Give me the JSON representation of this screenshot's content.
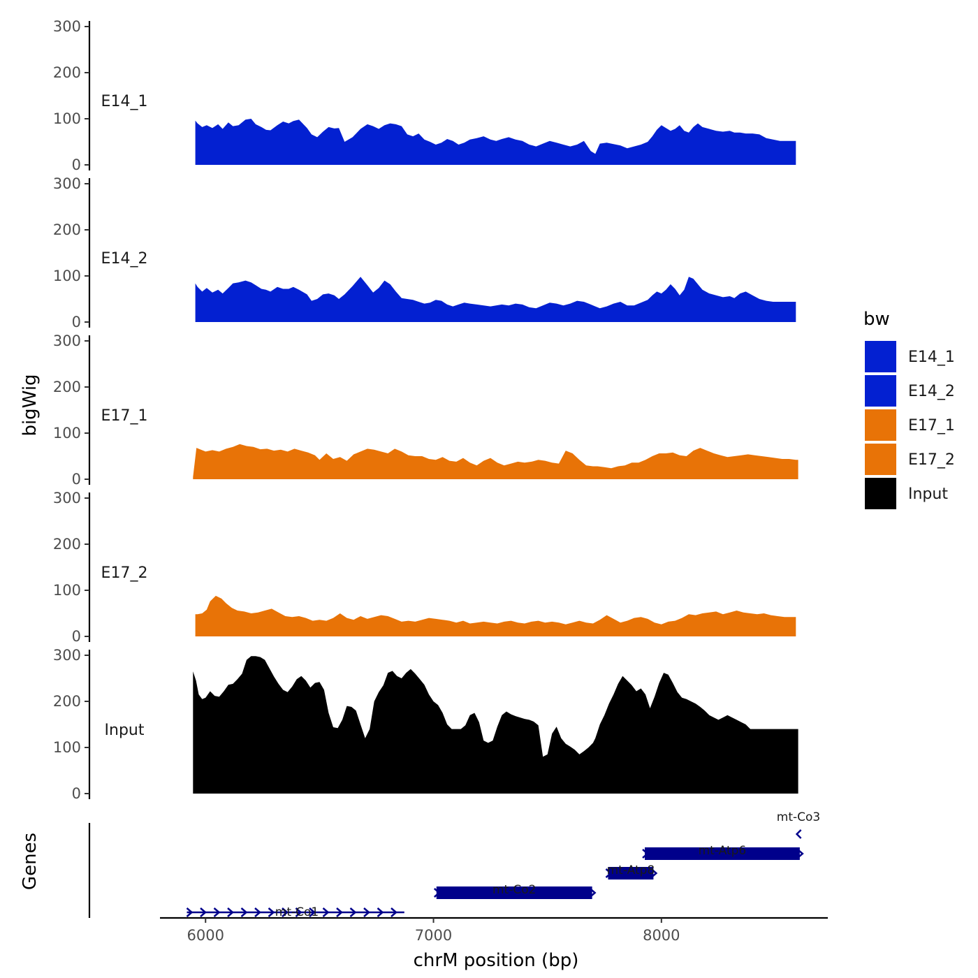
{
  "chart_data": {
    "type": "area",
    "xlabel": "chrM position (bp)",
    "ylabel": "bigWig",
    "genes_axis_label": "Genes",
    "xlim": [
      5800,
      8730
    ],
    "x_ticks": [
      6000,
      7000,
      8000
    ],
    "x_tick_labels": [
      "6000",
      "7000",
      "8000"
    ],
    "ylim": [
      0,
      300
    ],
    "y_ticks": [
      0,
      100,
      200,
      300
    ],
    "y_tick_labels": [
      "0",
      "100",
      "200",
      "300"
    ],
    "legend": {
      "title": "bw",
      "position": "right",
      "entries": [
        {
          "label": "E14_1",
          "color": "#0320d1"
        },
        {
          "label": "E14_2",
          "color": "#0320d1"
        },
        {
          "label": "E17_1",
          "color": "#e87307"
        },
        {
          "label": "E17_2",
          "color": "#e87307"
        },
        {
          "label": "Input",
          "color": "#000000"
        }
      ]
    },
    "series": [
      {
        "name": "E14_1",
        "color": "#0320d1",
        "x": [
          5955,
          5965,
          5985,
          6005,
          6030,
          6055,
          6075,
          6100,
          6120,
          6145,
          6175,
          6200,
          6220,
          6245,
          6265,
          6285,
          6315,
          6340,
          6365,
          6385,
          6410,
          6445,
          6465,
          6490,
          6515,
          6540,
          6565,
          6585,
          6610,
          6645,
          6680,
          6710,
          6735,
          6760,
          6785,
          6810,
          6835,
          6860,
          6885,
          6910,
          6935,
          6960,
          6985,
          7010,
          7035,
          7060,
          7085,
          7110,
          7135,
          7160,
          7190,
          7220,
          7250,
          7275,
          7300,
          7330,
          7360,
          7390,
          7420,
          7450,
          7480,
          7510,
          7540,
          7570,
          7600,
          7630,
          7660,
          7690,
          7710,
          7730,
          7760,
          7790,
          7820,
          7850,
          7880,
          7910,
          7940,
          7960,
          7980,
          8000,
          8020,
          8040,
          8060,
          8080,
          8100,
          8120,
          8140,
          8160,
          8180,
          8210,
          8240,
          8270,
          8300,
          8320,
          8345,
          8370,
          8400,
          8430,
          8460,
          8490,
          8520,
          8550,
          8580,
          8590
        ],
        "y": [
          96,
          90,
          82,
          86,
          80,
          88,
          78,
          92,
          84,
          86,
          98,
          100,
          88,
          82,
          76,
          75,
          86,
          94,
          90,
          95,
          98,
          80,
          66,
          60,
          72,
          82,
          79,
          80,
          50,
          60,
          78,
          88,
          84,
          78,
          86,
          90,
          88,
          84,
          66,
          62,
          68,
          55,
          50,
          44,
          48,
          56,
          52,
          44,
          48,
          55,
          58,
          62,
          55,
          52,
          56,
          60,
          55,
          52,
          44,
          40,
          46,
          52,
          48,
          44,
          40,
          44,
          52,
          30,
          24,
          46,
          48,
          45,
          42,
          36,
          40,
          44,
          50,
          62,
          76,
          86,
          80,
          74,
          78,
          86,
          74,
          70,
          82,
          90,
          82,
          78,
          74,
          72,
          74,
          70,
          70,
          68,
          68,
          66,
          58,
          55,
          52,
          52,
          52,
          52
        ]
      },
      {
        "name": "E14_2",
        "color": "#0320d1",
        "x": [
          5955,
          5965,
          5985,
          6005,
          6030,
          6055,
          6075,
          6100,
          6120,
          6145,
          6175,
          6200,
          6220,
          6245,
          6265,
          6285,
          6315,
          6340,
          6365,
          6385,
          6410,
          6445,
          6465,
          6490,
          6515,
          6540,
          6565,
          6585,
          6610,
          6645,
          6680,
          6710,
          6735,
          6760,
          6785,
          6810,
          6835,
          6860,
          6885,
          6910,
          6935,
          6960,
          6985,
          7010,
          7035,
          7060,
          7085,
          7110,
          7135,
          7160,
          7190,
          7220,
          7250,
          7275,
          7300,
          7330,
          7360,
          7390,
          7420,
          7450,
          7480,
          7510,
          7540,
          7570,
          7600,
          7630,
          7660,
          7690,
          7710,
          7730,
          7760,
          7790,
          7820,
          7850,
          7880,
          7910,
          7940,
          7960,
          7980,
          8000,
          8020,
          8040,
          8060,
          8080,
          8100,
          8120,
          8140,
          8160,
          8180,
          8210,
          8240,
          8270,
          8300,
          8320,
          8345,
          8370,
          8400,
          8430,
          8460,
          8490,
          8520,
          8550,
          8580,
          8590
        ],
        "y": [
          84,
          76,
          66,
          74,
          64,
          70,
          62,
          74,
          84,
          86,
          90,
          86,
          80,
          72,
          70,
          66,
          76,
          72,
          72,
          76,
          70,
          60,
          46,
          50,
          60,
          62,
          58,
          50,
          60,
          78,
          98,
          80,
          64,
          74,
          90,
          82,
          66,
          52,
          50,
          48,
          44,
          40,
          42,
          48,
          46,
          38,
          34,
          38,
          42,
          40,
          38,
          36,
          34,
          36,
          38,
          36,
          40,
          38,
          32,
          30,
          36,
          42,
          40,
          36,
          40,
          46,
          44,
          38,
          34,
          30,
          34,
          40,
          44,
          36,
          36,
          42,
          48,
          58,
          66,
          62,
          70,
          82,
          72,
          58,
          70,
          98,
          94,
          82,
          70,
          62,
          58,
          54,
          56,
          52,
          62,
          66,
          58,
          50,
          46,
          44,
          44,
          44,
          44,
          44
        ]
      },
      {
        "name": "E17_1",
        "color": "#e87307",
        "x": [
          5945,
          5960,
          5980,
          6000,
          6030,
          6060,
          6090,
          6120,
          6150,
          6180,
          6210,
          6240,
          6270,
          6300,
          6330,
          6360,
          6390,
          6420,
          6450,
          6480,
          6500,
          6530,
          6560,
          6590,
          6620,
          6650,
          6680,
          6710,
          6740,
          6770,
          6800,
          6830,
          6860,
          6890,
          6920,
          6950,
          6980,
          7010,
          7040,
          7070,
          7100,
          7130,
          7160,
          7190,
          7220,
          7250,
          7280,
          7310,
          7340,
          7370,
          7400,
          7430,
          7460,
          7490,
          7520,
          7550,
          7580,
          7610,
          7640,
          7670,
          7700,
          7720,
          7750,
          7780,
          7810,
          7840,
          7870,
          7900,
          7930,
          7960,
          7990,
          8020,
          8050,
          8080,
          8110,
          8140,
          8170,
          8200,
          8230,
          8260,
          8290,
          8320,
          8350,
          8380,
          8410,
          8440,
          8470,
          8500,
          8530,
          8560,
          8590,
          8600
        ],
        "y": [
          5,
          68,
          64,
          60,
          63,
          60,
          66,
          70,
          76,
          72,
          70,
          65,
          66,
          62,
          64,
          60,
          66,
          62,
          58,
          52,
          42,
          56,
          44,
          48,
          40,
          54,
          60,
          66,
          64,
          60,
          56,
          66,
          60,
          52,
          50,
          50,
          44,
          42,
          48,
          40,
          38,
          46,
          36,
          30,
          40,
          46,
          36,
          30,
          34,
          38,
          36,
          38,
          42,
          40,
          36,
          34,
          62,
          56,
          42,
          30,
          28,
          28,
          26,
          24,
          28,
          30,
          36,
          36,
          42,
          50,
          56,
          56,
          58,
          52,
          50,
          62,
          68,
          62,
          56,
          52,
          48,
          50,
          52,
          54,
          52,
          50,
          48,
          46,
          44,
          44,
          42,
          42
        ]
      },
      {
        "name": "E17_2",
        "color": "#e87307",
        "x": [
          5955,
          5965,
          5985,
          6005,
          6020,
          6045,
          6070,
          6090,
          6115,
          6140,
          6170,
          6200,
          6230,
          6260,
          6290,
          6320,
          6350,
          6380,
          6410,
          6440,
          6470,
          6500,
          6530,
          6560,
          6590,
          6620,
          6650,
          6680,
          6710,
          6740,
          6770,
          6800,
          6830,
          6860,
          6890,
          6920,
          6950,
          6980,
          7010,
          7040,
          7070,
          7100,
          7130,
          7160,
          7190,
          7220,
          7250,
          7280,
          7310,
          7340,
          7370,
          7400,
          7430,
          7460,
          7490,
          7520,
          7550,
          7580,
          7610,
          7640,
          7670,
          7700,
          7730,
          7760,
          7790,
          7820,
          7850,
          7880,
          7910,
          7940,
          7970,
          8000,
          8030,
          8060,
          8090,
          8120,
          8150,
          8180,
          8210,
          8240,
          8270,
          8300,
          8330,
          8360,
          8390,
          8420,
          8450,
          8480,
          8510,
          8540,
          8570,
          8590
        ],
        "y": [
          48,
          48,
          50,
          58,
          76,
          88,
          82,
          72,
          62,
          56,
          54,
          50,
          52,
          56,
          60,
          52,
          44,
          42,
          44,
          40,
          34,
          36,
          34,
          40,
          50,
          40,
          36,
          44,
          38,
          42,
          46,
          44,
          38,
          32,
          34,
          32,
          36,
          40,
          38,
          36,
          34,
          30,
          34,
          28,
          30,
          32,
          30,
          28,
          32,
          34,
          30,
          28,
          32,
          34,
          30,
          32,
          30,
          26,
          30,
          34,
          30,
          28,
          36,
          46,
          38,
          30,
          34,
          40,
          42,
          38,
          30,
          26,
          32,
          34,
          40,
          48,
          46,
          50,
          52,
          54,
          48,
          52,
          56,
          52,
          50,
          48,
          50,
          46,
          44,
          42,
          42,
          42
        ]
      },
      {
        "name": "Input",
        "color": "#000000",
        "x": [
          5945,
          5958,
          5970,
          5985,
          6000,
          6020,
          6040,
          6060,
          6080,
          6100,
          6120,
          6140,
          6160,
          6180,
          6200,
          6220,
          6240,
          6260,
          6280,
          6300,
          6320,
          6340,
          6360,
          6380,
          6400,
          6420,
          6440,
          6460,
          6480,
          6500,
          6520,
          6540,
          6560,
          6580,
          6600,
          6620,
          6640,
          6660,
          6680,
          6700,
          6720,
          6740,
          6760,
          6780,
          6800,
          6820,
          6840,
          6860,
          6880,
          6900,
          6920,
          6940,
          6960,
          6980,
          7000,
          7020,
          7040,
          7060,
          7080,
          7100,
          7120,
          7140,
          7160,
          7180,
          7200,
          7220,
          7240,
          7260,
          7280,
          7300,
          7320,
          7340,
          7360,
          7380,
          7400,
          7420,
          7440,
          7460,
          7480,
          7500,
          7520,
          7540,
          7560,
          7580,
          7600,
          7620,
          7640,
          7660,
          7680,
          7700,
          7710,
          7720,
          7730,
          7750,
          7770,
          7790,
          7810,
          7830,
          7850,
          7870,
          7890,
          7910,
          7930,
          7950,
          7970,
          7990,
          8010,
          8030,
          8050,
          8070,
          8090,
          8110,
          8130,
          8150,
          8170,
          8190,
          8210,
          8230,
          8250,
          8270,
          8290,
          8310,
          8330,
          8350,
          8370,
          8390,
          8410,
          8430,
          8450,
          8470,
          8490,
          8510,
          8530,
          8550,
          8570,
          8590,
          8600
        ],
        "y": [
          265,
          245,
          215,
          205,
          208,
          222,
          212,
          210,
          222,
          236,
          238,
          248,
          260,
          290,
          298,
          298,
          296,
          290,
          272,
          254,
          238,
          225,
          220,
          232,
          248,
          255,
          245,
          230,
          240,
          242,
          225,
          175,
          144,
          142,
          160,
          190,
          188,
          180,
          150,
          120,
          140,
          200,
          220,
          235,
          262,
          266,
          255,
          250,
          262,
          270,
          260,
          248,
          236,
          215,
          200,
          192,
          175,
          150,
          140,
          140,
          140,
          148,
          170,
          175,
          155,
          115,
          110,
          115,
          145,
          170,
          178,
          172,
          168,
          165,
          162,
          160,
          156,
          148,
          80,
          85,
          130,
          145,
          120,
          108,
          102,
          95,
          85,
          92,
          100,
          110,
          120,
          135,
          150,
          170,
          195,
          215,
          238,
          255,
          245,
          235,
          222,
          228,
          215,
          185,
          210,
          240,
          262,
          258,
          240,
          220,
          208,
          205,
          200,
          195,
          188,
          180,
          170,
          165,
          160,
          165,
          170,
          165,
          160,
          155,
          150,
          140,
          140,
          140,
          140,
          140,
          140,
          140,
          140,
          140,
          140,
          140,
          140
        ],
        "note": "values approximate, read from plot"
      }
    ],
    "genes": [
      {
        "name": "mt-Co1",
        "start": 5918,
        "end": 6872,
        "strand": "+",
        "row": 0,
        "style": "arrows"
      },
      {
        "name": "mt-Co2",
        "start": 7013,
        "end": 7696,
        "strand": "+",
        "row": 1,
        "style": "box"
      },
      {
        "name": "mt-Atp8",
        "start": 7766,
        "end": 7965,
        "strand": "+",
        "row": 2,
        "style": "box"
      },
      {
        "name": "mt-Atp6",
        "start": 7927,
        "end": 8607,
        "strand": "+",
        "row": 3,
        "style": "box"
      },
      {
        "name": "mt-Co3",
        "start": 8594,
        "end": 8607,
        "strand": "+",
        "row": 4,
        "style": "box"
      }
    ],
    "gene_color": "#00008b"
  }
}
